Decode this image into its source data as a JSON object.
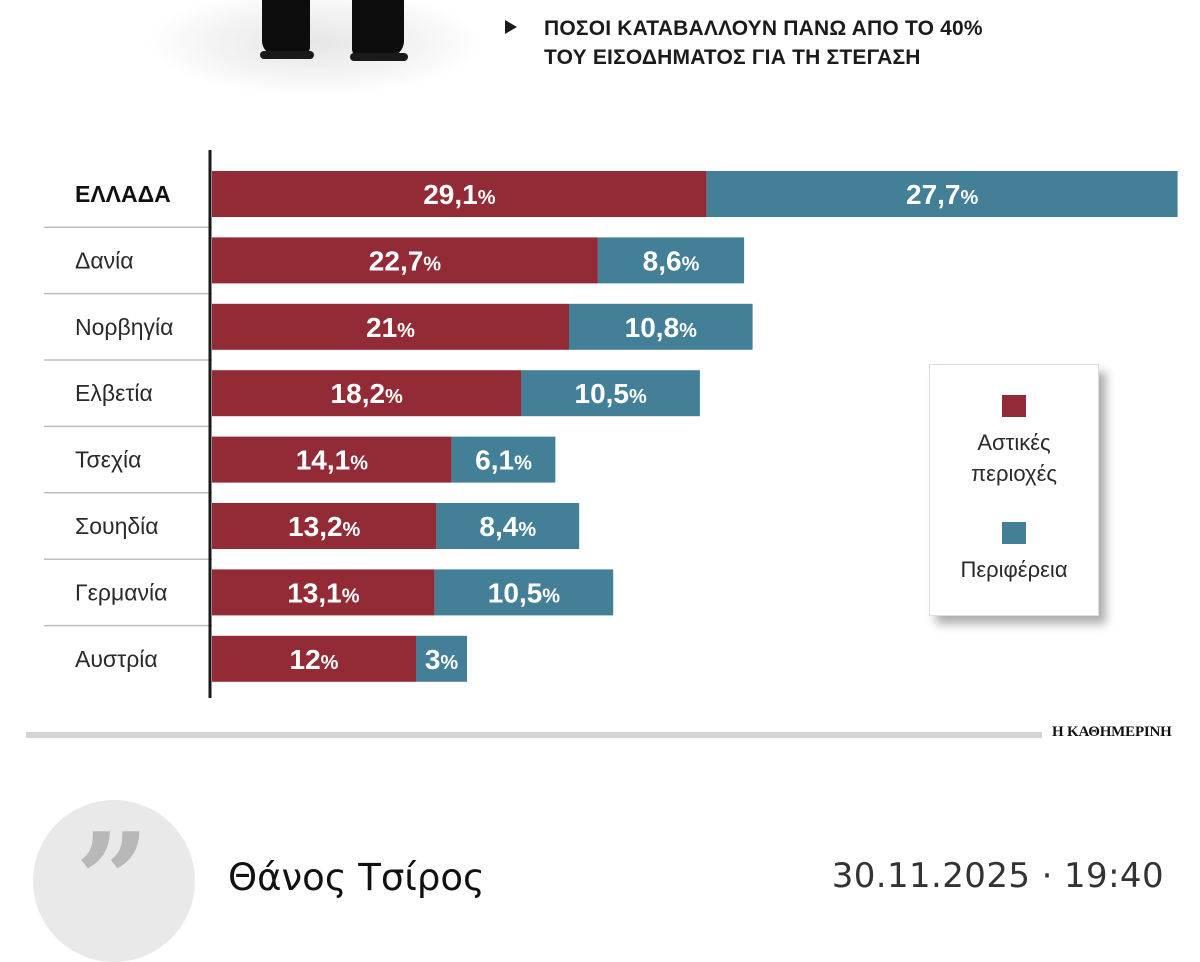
{
  "headline": {
    "line1": "ΠΟΣΟΙ ΚΑΤΑΒΑΛΛΟΥΝ ΠΑΝΩ ΑΠΟ ΤΟ 40%",
    "line2": "ΤΟΥ ΕΙΣΟΔΗΜΑΤΟΣ ΓΙΑ ΤΗ ΣΤΕΓΑΣΗ"
  },
  "chart_data": {
    "type": "bar",
    "orientation": "horizontal",
    "stacked": true,
    "categories": [
      "ΕΛΛΑΔΑ",
      "Δανία",
      "Νορβηγία",
      "Ελβετία",
      "Τσεχία",
      "Σουηδία",
      "Γερμανία",
      "Αυστρία"
    ],
    "highlight": "ΕΛΛΑΔΑ",
    "unit": "%",
    "series": [
      {
        "name": "Αστικές περιοχές",
        "color": "#922b35",
        "values": [
          29.1,
          22.7,
          21,
          18.2,
          14.1,
          13.2,
          13.1,
          12
        ],
        "labels": [
          "29,1",
          "22,7",
          "21",
          "18,2",
          "14,1",
          "13,2",
          "13,1",
          "12"
        ]
      },
      {
        "name": "Περιφέρεια",
        "color": "#447f98",
        "values": [
          27.7,
          8.6,
          10.8,
          10.5,
          6.1,
          8.4,
          10.5,
          3
        ],
        "labels": [
          "27,7",
          "8,6",
          "10,8",
          "10,5",
          "6,1",
          "8,4",
          "10,5",
          "3"
        ]
      }
    ],
    "legend_position": "right",
    "grid": false
  },
  "legend": {
    "urban_label_l1": "Αστικές",
    "urban_label_l2": "περιοχές",
    "rural_label": "Περιφέρεια"
  },
  "source": "Η ΚΑΘΗΜΕΡΙΝΗ",
  "byline": {
    "quote_icon": "quote-icon",
    "author": "Θάνος Τσίρος",
    "datetime": "30.11.2025 · 19:40"
  }
}
